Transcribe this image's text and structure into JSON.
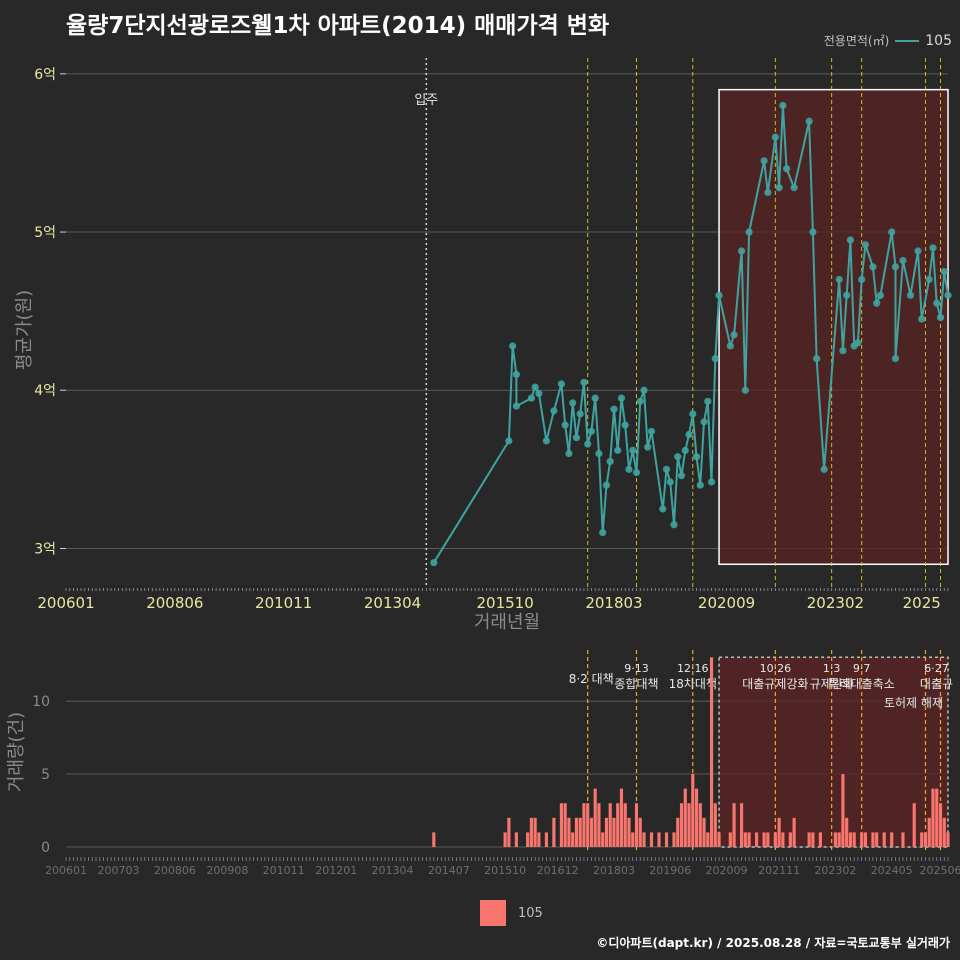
{
  "title": "율량7단지선광로즈웰1차 아파트(2014) 매매가격 변화",
  "legend": {
    "label": "전용면적(㎡)",
    "series_name": "105"
  },
  "footer": "©디아파트(dapt.kr) / 2025.08.28 / 자료=국토교통부 실거래가",
  "colors": {
    "line": "#3fa3a0",
    "bar": "#f8766d",
    "vline": "#f2d21b",
    "vline_orange": "#f5a623",
    "shade": "#5a2323",
    "bg": "#282828",
    "grid": "#5a5a5a"
  },
  "chart_data": [
    {
      "type": "line",
      "title": "율량7단지선광로즈웰1차 아파트(2014) 매매가격 변화",
      "xlabel": "거래년월",
      "ylabel": "평균가(원)",
      "x_tick_labels": [
        "200601",
        "200806",
        "201011",
        "201304",
        "201510",
        "201803",
        "202009",
        "202302",
        "2025"
      ],
      "y_tick_labels": [
        "3억",
        "4억",
        "5억",
        "6억"
      ],
      "y_tick_values": [
        3.0,
        4.0,
        5.0,
        6.0
      ],
      "ylim": [
        2.75,
        6.1
      ],
      "xlim": [
        "2006-01",
        "2025-08"
      ],
      "grid": true,
      "legend_position": "top-right",
      "annotation_text": "입주",
      "annotation_date": "2014-01",
      "policy_lines": [
        "2017-08",
        "2018-09",
        "2019-12",
        "2021-10",
        "2023-01",
        "2023-09",
        "2025-02",
        "2025-06"
      ],
      "shaded_region": {
        "from": "2020-07",
        "to": "2025-08",
        "ymin": 2.9,
        "ymax": 5.9
      },
      "series": [
        {
          "name": "105",
          "points": [
            [
              "2014-03",
              2.91
            ],
            [
              "2015-11",
              3.68
            ],
            [
              "2015-12",
              4.28
            ],
            [
              "2016-01",
              4.1
            ],
            [
              "2016-01",
              3.9
            ],
            [
              "2016-05",
              3.95
            ],
            [
              "2016-06",
              4.02
            ],
            [
              "2016-07",
              3.98
            ],
            [
              "2016-09",
              3.68
            ],
            [
              "2016-11",
              3.87
            ],
            [
              "2017-01",
              4.04
            ],
            [
              "2017-02",
              3.78
            ],
            [
              "2017-03",
              3.6
            ],
            [
              "2017-04",
              3.92
            ],
            [
              "2017-05",
              3.7
            ],
            [
              "2017-06",
              3.85
            ],
            [
              "2017-07",
              4.05
            ],
            [
              "2017-08",
              3.66
            ],
            [
              "2017-09",
              3.74
            ],
            [
              "2017-10",
              3.95
            ],
            [
              "2017-11",
              3.6
            ],
            [
              "2017-12",
              3.1
            ],
            [
              "2018-01",
              3.4
            ],
            [
              "2018-02",
              3.55
            ],
            [
              "2018-03",
              3.88
            ],
            [
              "2018-04",
              3.62
            ],
            [
              "2018-05",
              3.95
            ],
            [
              "2018-06",
              3.78
            ],
            [
              "2018-07",
              3.5
            ],
            [
              "2018-08",
              3.62
            ],
            [
              "2018-09",
              3.48
            ],
            [
              "2018-10",
              3.93
            ],
            [
              "2018-11",
              4.0
            ],
            [
              "2018-12",
              3.64
            ],
            [
              "2019-01",
              3.74
            ],
            [
              "2019-04",
              3.25
            ],
            [
              "2019-05",
              3.5
            ],
            [
              "2019-06",
              3.42
            ],
            [
              "2019-07",
              3.15
            ],
            [
              "2019-08",
              3.58
            ],
            [
              "2019-09",
              3.46
            ],
            [
              "2019-10",
              3.62
            ],
            [
              "2019-11",
              3.72
            ],
            [
              "2019-12",
              3.85
            ],
            [
              "2020-01",
              3.58
            ],
            [
              "2020-02",
              3.4
            ],
            [
              "2020-03",
              3.8
            ],
            [
              "2020-04",
              3.93
            ],
            [
              "2020-05",
              3.42
            ],
            [
              "2020-06",
              4.2
            ],
            [
              "2020-07",
              4.6
            ],
            [
              "2020-10",
              4.28
            ],
            [
              "2020-11",
              4.35
            ],
            [
              "2021-01",
              4.88
            ],
            [
              "2021-02",
              4.0
            ],
            [
              "2021-03",
              5.0
            ],
            [
              "2021-07",
              5.45
            ],
            [
              "2021-08",
              5.25
            ],
            [
              "2021-10",
              5.6
            ],
            [
              "2021-11",
              5.28
            ],
            [
              "2021-12",
              5.8
            ],
            [
              "2022-01",
              5.4
            ],
            [
              "2022-03",
              5.28
            ],
            [
              "2022-07",
              5.7
            ],
            [
              "2022-08",
              5.0
            ],
            [
              "2022-09",
              4.2
            ],
            [
              "2022-11",
              3.5
            ],
            [
              "2023-03",
              4.7
            ],
            [
              "2023-04",
              4.25
            ],
            [
              "2023-05",
              4.6
            ],
            [
              "2023-06",
              4.95
            ],
            [
              "2023-07",
              4.28
            ],
            [
              "2023-08",
              4.3
            ],
            [
              "2023-09",
              4.7
            ],
            [
              "2023-10",
              4.92
            ],
            [
              "2023-12",
              4.78
            ],
            [
              "2024-01",
              4.55
            ],
            [
              "2024-02",
              4.6
            ],
            [
              "2024-05",
              5.0
            ],
            [
              "2024-06",
              4.78
            ],
            [
              "2024-06",
              4.2
            ],
            [
              "2024-08",
              4.82
            ],
            [
              "2024-10",
              4.6
            ],
            [
              "2024-12",
              4.88
            ],
            [
              "2025-01",
              4.45
            ],
            [
              "2025-03",
              4.7
            ],
            [
              "2025-04",
              4.9
            ],
            [
              "2025-05",
              4.55
            ],
            [
              "2025-06",
              4.46
            ],
            [
              "2025-07",
              4.75
            ],
            [
              "2025-08",
              4.6
            ]
          ]
        }
      ]
    },
    {
      "type": "bar",
      "xlabel": "",
      "ylabel": "거래량(건)",
      "x_tick_labels": [
        "200601",
        "200703",
        "200806",
        "200908",
        "201011",
        "201201",
        "201304",
        "201407",
        "201510",
        "201612",
        "201803",
        "201906",
        "202009",
        "202111",
        "202302",
        "202405",
        "202506"
      ],
      "y_tick_labels": [
        "0",
        "5",
        "10"
      ],
      "y_tick_values": [
        0,
        5,
        10
      ],
      "ylim": [
        0,
        13.5
      ],
      "xlim": [
        "2006-01",
        "2025-08"
      ],
      "grid": true,
      "policy_lines": [
        "2017-08",
        "2018-09",
        "2019-12",
        "2021-10",
        "2023-01",
        "2023-09",
        "2025-02",
        "2025-06"
      ],
      "shaded_region": {
        "from": "2020-07",
        "to": "2025-08",
        "ymin": 0,
        "ymax": 13
      },
      "policy_labels": [
        {
          "date": "2017-08",
          "lines": [
            "8·2 대책"
          ]
        },
        {
          "date": "2018-09",
          "lines": [
            "9·13",
            "종합대책"
          ]
        },
        {
          "date": "2019-12",
          "lines": [
            "12·16",
            "18차대책"
          ]
        },
        {
          "date": "2021-10",
          "lines": [
            "10·26",
            "대출규제강화"
          ]
        },
        {
          "date": "2023-01",
          "lines": [
            "1·3",
            "규제완화"
          ]
        },
        {
          "date": "2023-09",
          "lines": [
            "9·7",
            "특례대출축소"
          ]
        },
        {
          "date": "2025-02",
          "lines": [
            "토허제 해제"
          ]
        },
        {
          "date": "2025-06",
          "lines": [
            "6·27",
            "대출규"
          ]
        }
      ],
      "series": [
        {
          "name": "105",
          "bars": [
            [
              "2014-03",
              1
            ],
            [
              "2015-10",
              1
            ],
            [
              "2015-11",
              2
            ],
            [
              "2016-01",
              1
            ],
            [
              "2016-04",
              1
            ],
            [
              "2016-05",
              2
            ],
            [
              "2016-06",
              2
            ],
            [
              "2016-07",
              1
            ],
            [
              "2016-09",
              1
            ],
            [
              "2016-11",
              2
            ],
            [
              "2017-01",
              3
            ],
            [
              "2017-02",
              3
            ],
            [
              "2017-03",
              2
            ],
            [
              "2017-04",
              1
            ],
            [
              "2017-05",
              2
            ],
            [
              "2017-06",
              2
            ],
            [
              "2017-07",
              3
            ],
            [
              "2017-08",
              3
            ],
            [
              "2017-09",
              2
            ],
            [
              "2017-10",
              4
            ],
            [
              "2017-11",
              3
            ],
            [
              "2017-12",
              1
            ],
            [
              "2018-01",
              2
            ],
            [
              "2018-02",
              3
            ],
            [
              "2018-03",
              2
            ],
            [
              "2018-04",
              3
            ],
            [
              "2018-05",
              4
            ],
            [
              "2018-06",
              3
            ],
            [
              "2018-07",
              2
            ],
            [
              "2018-08",
              1
            ],
            [
              "2018-09",
              3
            ],
            [
              "2018-10",
              2
            ],
            [
              "2018-11",
              1
            ],
            [
              "2019-01",
              1
            ],
            [
              "2019-03",
              1
            ],
            [
              "2019-05",
              1
            ],
            [
              "2019-07",
              1
            ],
            [
              "2019-08",
              2
            ],
            [
              "2019-09",
              3
            ],
            [
              "2019-10",
              4
            ],
            [
              "2019-11",
              3
            ],
            [
              "2019-12",
              5
            ],
            [
              "2020-01",
              4
            ],
            [
              "2020-02",
              3
            ],
            [
              "2020-03",
              2
            ],
            [
              "2020-04",
              1
            ],
            [
              "2020-05",
              13
            ],
            [
              "2020-06",
              3
            ],
            [
              "2020-07",
              1
            ],
            [
              "2020-10",
              1
            ],
            [
              "2020-11",
              3
            ],
            [
              "2021-01",
              3
            ],
            [
              "2021-02",
              1
            ],
            [
              "2021-03",
              1
            ],
            [
              "2021-05",
              1
            ],
            [
              "2021-07",
              1
            ],
            [
              "2021-08",
              1
            ],
            [
              "2021-10",
              1
            ],
            [
              "2021-11",
              2
            ],
            [
              "2021-12",
              1
            ],
            [
              "2022-02",
              1
            ],
            [
              "2022-03",
              2
            ],
            [
              "2022-07",
              1
            ],
            [
              "2022-08",
              1
            ],
            [
              "2022-10",
              1
            ],
            [
              "2023-02",
              1
            ],
            [
              "2023-03",
              1
            ],
            [
              "2023-04",
              5
            ],
            [
              "2023-05",
              2
            ],
            [
              "2023-06",
              1
            ],
            [
              "2023-07",
              1
            ],
            [
              "2023-09",
              1
            ],
            [
              "2023-10",
              1
            ],
            [
              "2023-12",
              1
            ],
            [
              "2024-01",
              1
            ],
            [
              "2024-03",
              1
            ],
            [
              "2024-05",
              1
            ],
            [
              "2024-08",
              1
            ],
            [
              "2024-11",
              3
            ],
            [
              "2025-01",
              1
            ],
            [
              "2025-02",
              1
            ],
            [
              "2025-03",
              2
            ],
            [
              "2025-04",
              4
            ],
            [
              "2025-05",
              4
            ],
            [
              "2025-06",
              3
            ],
            [
              "2025-07",
              2
            ],
            [
              "2025-08",
              1
            ]
          ]
        }
      ]
    }
  ]
}
